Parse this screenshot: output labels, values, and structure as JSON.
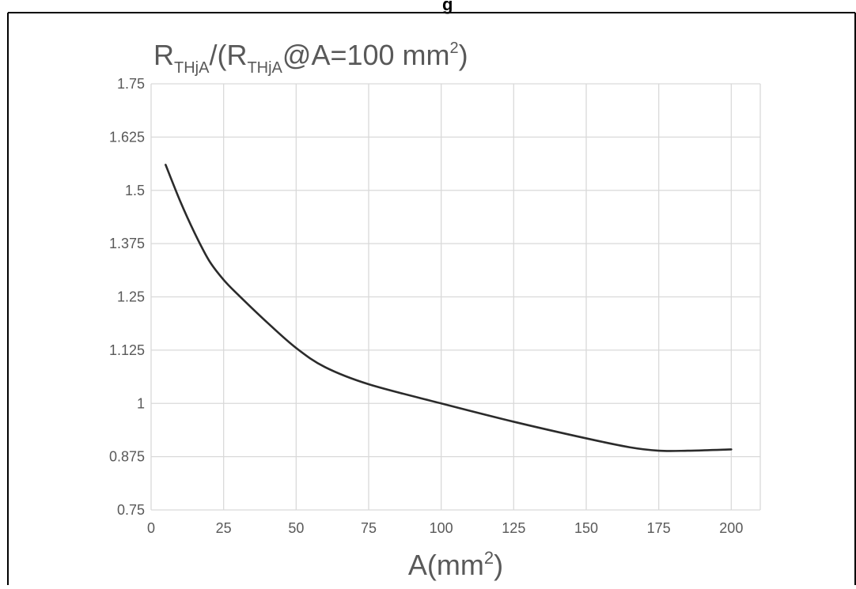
{
  "chart_data": {
    "type": "line",
    "title": {
      "r1": "R",
      "sub1": "THjA",
      "mid": "/(R",
      "sub2": "THjA",
      "rest": "@A=100 mm",
      "sup": "2",
      "end": ")"
    },
    "xlabel": {
      "base": "A(mm",
      "sup": "2",
      "end": ")"
    },
    "ylabel": "",
    "xlim": [
      0,
      210
    ],
    "ylim": [
      0.75,
      1.75
    ],
    "x_ticks": [
      0,
      25,
      50,
      75,
      100,
      125,
      150,
      175,
      200
    ],
    "y_ticks": [
      0.75,
      0.875,
      1,
      1.125,
      1.25,
      1.375,
      1.5,
      1.625,
      1.75
    ],
    "x_tick_labels": [
      "0",
      "25",
      "50",
      "75",
      "100",
      "125",
      "150",
      "175",
      "200"
    ],
    "y_tick_labels": [
      "0.75",
      "0.875",
      "1",
      "1.125",
      "1.25",
      "1.375",
      "1.5",
      "1.625",
      "1.75"
    ],
    "grid": true,
    "legend": "none",
    "series": [
      {
        "color": "#2b2b2b",
        "points": [
          [
            5,
            1.56
          ],
          [
            10,
            1.475
          ],
          [
            15,
            1.4
          ],
          [
            20,
            1.335
          ],
          [
            25,
            1.29
          ],
          [
            30,
            1.255
          ],
          [
            40,
            1.19
          ],
          [
            50,
            1.13
          ],
          [
            60,
            1.085
          ],
          [
            75,
            1.045
          ],
          [
            100,
            1.0
          ],
          [
            125,
            0.957
          ],
          [
            150,
            0.918
          ],
          [
            165,
            0.897
          ],
          [
            175,
            0.889
          ],
          [
            185,
            0.889
          ],
          [
            200,
            0.892
          ]
        ]
      }
    ]
  },
  "page_header_fragment": "g"
}
